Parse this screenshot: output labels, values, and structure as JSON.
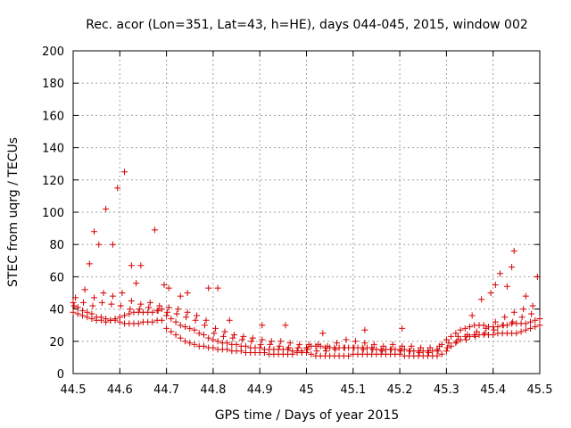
{
  "chart_data": {
    "type": "scatter",
    "title": "Rec. acor (Lon=351, Lat=43, h=HE), days 044-045, 2015, window 002",
    "xlabel": "GPS time / Days of year 2015",
    "ylabel": "STEC from uqrg / TECUs",
    "xlim": [
      44.5,
      45.5
    ],
    "ylim": [
      0,
      200
    ],
    "xticks": [
      44.5,
      44.6,
      44.7,
      44.8,
      44.9,
      45,
      45.1,
      45.2,
      45.3,
      45.4,
      45.5
    ],
    "xtick_labels": [
      "44.5",
      "44.6",
      "44.7",
      "44.8",
      "44.9",
      "45",
      "45.1",
      "45.2",
      "45.3",
      "45.4",
      "45.5"
    ],
    "yticks": [
      0,
      20,
      40,
      60,
      80,
      100,
      120,
      140,
      160,
      180,
      200
    ],
    "ytick_labels": [
      "0",
      "20",
      "40",
      "60",
      "80",
      "100",
      "120",
      "140",
      "160",
      "180",
      "200"
    ],
    "grid": true,
    "marker": "+",
    "color": "#d40000",
    "series": [
      {
        "name": "STEC",
        "x": [
          44.5,
          44.51,
          44.52,
          44.53,
          44.54,
          44.55,
          44.56,
          44.57,
          44.58,
          44.59,
          44.6,
          44.61,
          44.62,
          44.63,
          44.64,
          44.65,
          44.66,
          44.67,
          44.68,
          44.69,
          44.7,
          44.71,
          44.72,
          44.73,
          44.74,
          44.75,
          44.76,
          44.77,
          44.78,
          44.79,
          44.8,
          44.81,
          44.82,
          44.83,
          44.84,
          44.85,
          44.86,
          44.87,
          44.88,
          44.89,
          44.9,
          44.91,
          44.92,
          44.93,
          44.94,
          44.95,
          44.96,
          44.97,
          44.98,
          44.99,
          45.0,
          45.01,
          45.02,
          45.03,
          45.04,
          45.05,
          45.06,
          45.07,
          45.08,
          45.09,
          45.1,
          45.11,
          45.12,
          45.13,
          45.14,
          45.15,
          45.16,
          45.17,
          45.18,
          45.19,
          45.2,
          45.21,
          45.22,
          45.23,
          45.24,
          45.25,
          45.26,
          45.27,
          45.28,
          45.29,
          45.3,
          45.31,
          45.32,
          45.33,
          45.34,
          45.35,
          45.36,
          45.37,
          45.38,
          45.39,
          45.4,
          45.41,
          45.42,
          45.43,
          45.44,
          45.45,
          45.46,
          45.47,
          45.48,
          45.49,
          45.5,
          44.5,
          44.51,
          44.52,
          44.53,
          44.54,
          44.55,
          44.56,
          44.57,
          44.58,
          44.59,
          44.6,
          44.61,
          44.62,
          44.63,
          44.64,
          44.65,
          44.66,
          44.67,
          44.68,
          44.69,
          44.7,
          44.71,
          44.72,
          44.73,
          44.74,
          44.75,
          44.76,
          44.77,
          44.78,
          44.79,
          44.8,
          44.81,
          44.82,
          44.83,
          44.84,
          44.85,
          44.86,
          44.87,
          44.88,
          44.89,
          44.9,
          44.91,
          44.92,
          44.93,
          44.94,
          44.95,
          44.96,
          44.97,
          44.98,
          44.99,
          45.0,
          45.01,
          45.02,
          45.03,
          45.04,
          45.05,
          45.06,
          45.07,
          45.08,
          45.09,
          45.1,
          45.11,
          45.12,
          45.13,
          45.14,
          45.15,
          45.16,
          45.17,
          45.18,
          45.19,
          45.2,
          45.21,
          45.22,
          45.23,
          45.24,
          45.25,
          45.26,
          45.27,
          45.28,
          45.29,
          45.3,
          45.31,
          45.32,
          45.33,
          45.34,
          45.35,
          45.36,
          45.37,
          45.38,
          45.39,
          45.4,
          45.41,
          45.42,
          45.43,
          45.44,
          45.45,
          45.46,
          45.47,
          45.48,
          45.49,
          45.5,
          44.505,
          44.525,
          44.545,
          44.565,
          44.585,
          44.605,
          44.625,
          44.645,
          44.665,
          44.685,
          44.705,
          44.725,
          44.745,
          44.765,
          44.785,
          44.805,
          44.825,
          44.845,
          44.865,
          44.885,
          44.905,
          44.925,
          44.945,
          44.965,
          44.985,
          45.005,
          45.025,
          45.045,
          45.065,
          45.085,
          45.105,
          45.125,
          45.145,
          45.165,
          45.185,
          45.205,
          45.225,
          45.245,
          45.265,
          45.285,
          45.305,
          45.325,
          45.345,
          45.365,
          45.385,
          45.405,
          45.425,
          45.445,
          45.465,
          45.485,
          44.502,
          44.522,
          44.542,
          44.562,
          44.582,
          44.602,
          44.622,
          44.642,
          44.662,
          44.682,
          44.702,
          44.722,
          44.742,
          44.762,
          44.782,
          44.802,
          44.822,
          44.842,
          44.862,
          44.882,
          44.902,
          44.922,
          44.942,
          44.962,
          44.982,
          45.002,
          45.022,
          45.042,
          45.062,
          45.082,
          45.102,
          45.122,
          45.142,
          45.162,
          45.182,
          45.202,
          45.222,
          45.242,
          45.262,
          45.282,
          45.302,
          45.322,
          45.342,
          45.362,
          45.382,
          45.402,
          45.422,
          45.442,
          45.462,
          45.482,
          44.535,
          44.545,
          44.555,
          44.57,
          44.585,
          44.595,
          44.61,
          44.625,
          44.635,
          44.645,
          44.675,
          44.695,
          44.705,
          44.73,
          44.745,
          44.79,
          44.81,
          44.835,
          44.905,
          44.955,
          45.035,
          45.125,
          45.205,
          45.355,
          45.375,
          45.395,
          45.405,
          45.415,
          45.43,
          45.44,
          45.445,
          45.47,
          45.495
        ],
        "y": [
          44,
          41,
          39,
          38,
          37,
          35,
          35,
          34,
          33,
          33,
          32,
          31,
          31,
          31,
          31,
          32,
          32,
          32,
          33,
          33,
          28,
          26,
          24,
          22,
          20,
          19,
          18,
          17,
          17,
          16,
          16,
          15,
          15,
          15,
          14,
          14,
          14,
          13,
          13,
          13,
          13,
          13,
          12,
          12,
          12,
          12,
          12,
          12,
          13,
          13,
          13,
          12,
          11,
          11,
          11,
          11,
          11,
          11,
          11,
          11,
          12,
          12,
          12,
          12,
          12,
          12,
          12,
          12,
          12,
          12,
          12,
          11,
          11,
          11,
          11,
          11,
          11,
          11,
          11,
          12,
          14,
          17,
          19,
          21,
          23,
          23,
          24,
          24,
          24,
          24,
          24,
          25,
          25,
          25,
          25,
          25,
          26,
          27,
          28,
          29,
          30,
          38,
          37,
          36,
          35,
          34,
          33,
          33,
          32,
          33,
          34,
          35,
          36,
          37,
          38,
          38,
          38,
          38,
          38,
          39,
          40,
          36,
          34,
          32,
          30,
          29,
          28,
          27,
          25,
          24,
          22,
          21,
          20,
          19,
          19,
          18,
          18,
          17,
          17,
          16,
          16,
          16,
          15,
          15,
          15,
          15,
          15,
          15,
          14,
          14,
          14,
          16,
          17,
          17,
          17,
          16,
          16,
          16,
          16,
          16,
          16,
          16,
          16,
          16,
          16,
          16,
          15,
          15,
          15,
          15,
          15,
          15,
          15,
          14,
          14,
          14,
          14,
          14,
          14,
          15,
          18,
          21,
          23,
          25,
          27,
          28,
          29,
          30,
          30,
          30,
          29,
          29,
          29,
          30,
          30,
          31,
          31,
          31,
          31,
          32,
          33,
          34,
          47,
          52,
          47,
          50,
          48,
          50,
          45,
          43,
          44,
          42,
          41,
          40,
          38,
          36,
          33,
          28,
          26,
          24,
          23,
          22,
          21,
          20,
          20,
          19,
          18,
          18,
          18,
          17,
          19,
          21,
          20,
          19,
          18,
          17,
          18,
          17,
          17,
          16,
          16,
          17,
          19,
          23,
          24,
          26,
          28,
          32,
          35,
          38,
          40,
          42,
          42,
          44,
          42,
          44,
          43,
          42,
          40,
          40,
          41,
          39,
          38,
          37,
          35,
          33,
          30,
          25,
          23,
          22,
          21,
          20,
          18,
          18,
          17,
          16,
          16,
          15,
          14,
          14,
          15,
          16,
          16,
          15,
          15,
          14,
          15,
          14,
          14,
          13,
          13,
          14,
          16,
          20,
          21,
          23,
          25,
          27,
          30,
          32,
          35,
          37,
          68,
          88,
          80,
          102,
          80,
          115,
          125,
          67,
          56,
          67,
          89,
          55,
          53,
          48,
          50,
          53,
          53,
          33,
          30,
          30,
          25,
          27,
          28,
          36,
          46,
          50,
          55,
          62,
          54,
          66,
          76,
          48,
          60
        ]
      }
    ]
  }
}
